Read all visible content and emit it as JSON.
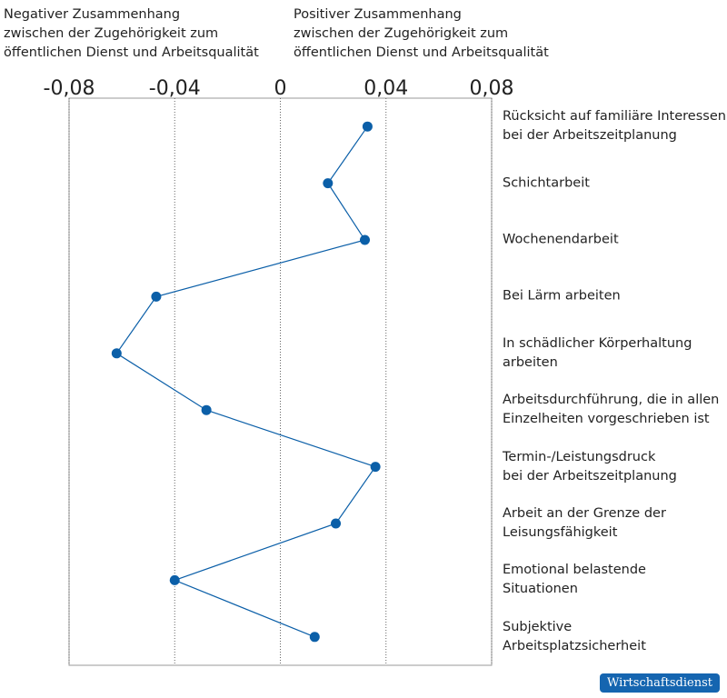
{
  "chart_data": {
    "type": "line",
    "annotations": [
      "Negativer Zusammenhang\nzwischen der Zugehörigkeit zum\nöffentlichen Dienst und Arbeitsqualität",
      "Positiver Zusammenhang\nzwischen der Zugehörigkeit zum\nöffentlichen Dienst und Arbeitsqualität"
    ],
    "categories": [
      "Rücksicht auf familiäre Interessen\nbei der Arbeitszeitplanung",
      "Schichtarbeit",
      "Wochenendarbeit",
      "Bei Lärm arbeiten",
      "In schädlicher Körperhaltung\narbeiten",
      "Arbeitsdurchführung, die in allen\nEinzelheiten vorgeschrieben ist",
      "Termin-/Leistungsdruck\nbei der Arbeitszeitplanung",
      "Arbeit an der Grenze der\nLeisungsfähigkeit",
      "Emotional belastende\nSituationen",
      "Subjektive\nArbeitsplatzsicherheit"
    ],
    "values": [
      0.033,
      0.018,
      0.032,
      -0.047,
      -0.062,
      -0.028,
      0.036,
      0.021,
      -0.04,
      0.013
    ],
    "color": "#0b5fa8",
    "xlim": [
      -0.08,
      0.08
    ],
    "xticks": [
      {
        "value": -0.08,
        "label": "-0,08"
      },
      {
        "value": -0.04,
        "label": "-0,04"
      },
      0,
      {
        "value": 0.04,
        "label": "0,04"
      },
      {
        "value": 0.08,
        "label": "0,08"
      }
    ],
    "grid": true,
    "source": "Wirtschaftsdienst"
  }
}
